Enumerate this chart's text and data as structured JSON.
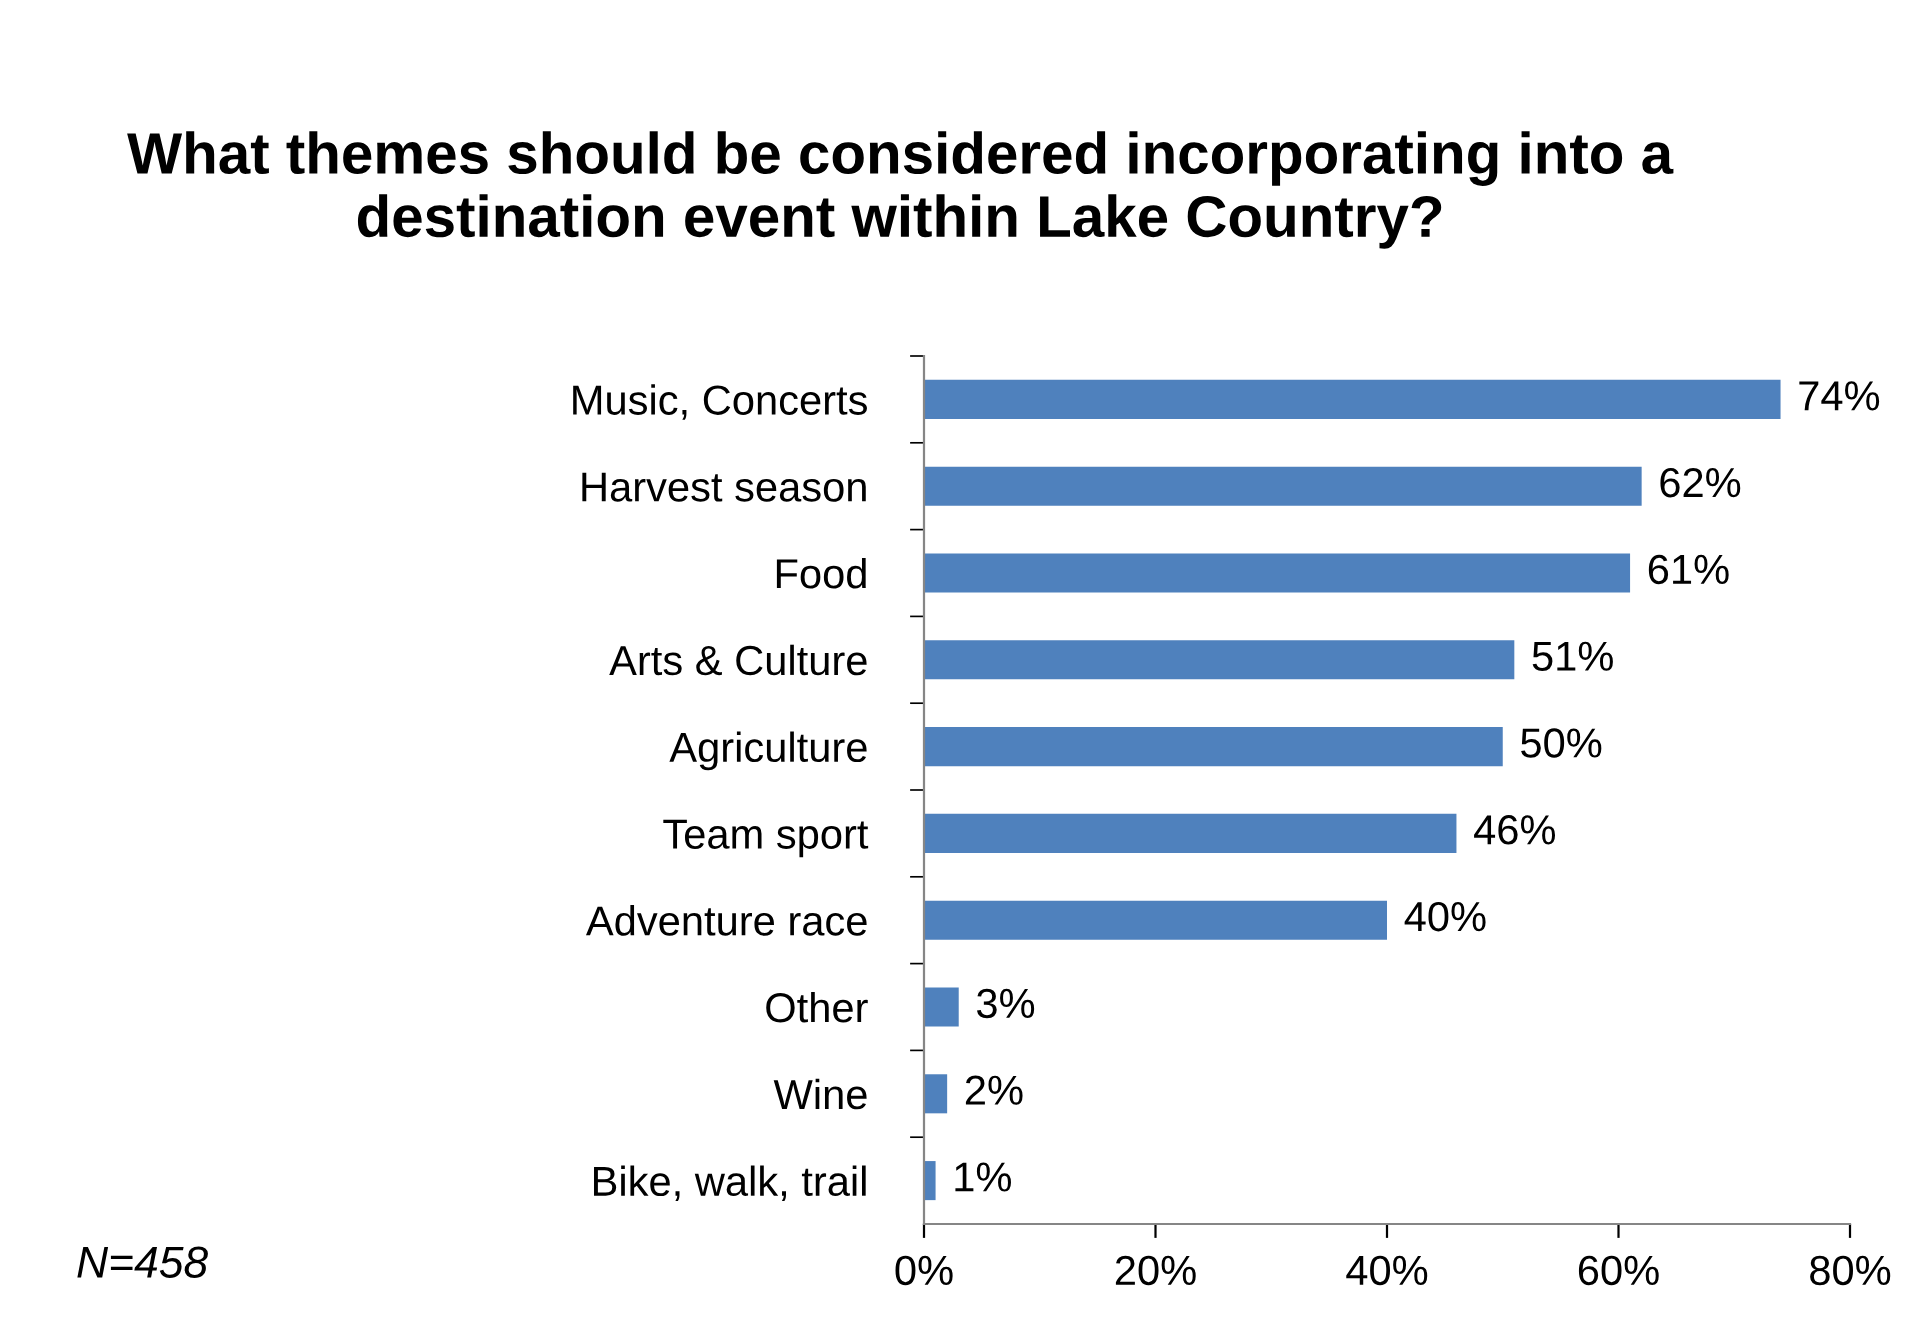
{
  "chart_data": {
    "type": "bar",
    "orientation": "horizontal",
    "title": "What themes should be considered incorporating into a destination event within Lake Country?",
    "categories": [
      "Music, Concerts",
      "Harvest season",
      "Food",
      "Arts & Culture",
      "Agriculture",
      "Team sport",
      "Adventure race",
      "Other",
      "Wine",
      "Bike, walk, trail"
    ],
    "values": [
      74,
      62,
      61,
      51,
      50,
      46,
      40,
      3,
      2,
      1
    ],
    "value_labels": [
      "74%",
      "62%",
      "61%",
      "51%",
      "50%",
      "46%",
      "40%",
      "3%",
      "2%",
      "1%"
    ],
    "color": "#4f81bd",
    "xlim": [
      0,
      80
    ],
    "xticks": [
      {
        "value": 0,
        "label": "0%"
      },
      {
        "value": 20,
        "label": "20%"
      },
      {
        "value": 40,
        "label": "40%"
      },
      {
        "value": 60,
        "label": "60%"
      },
      {
        "value": 80,
        "label": "80%"
      }
    ],
    "grid": false,
    "legend": false,
    "annotations": [
      "N=458"
    ]
  }
}
